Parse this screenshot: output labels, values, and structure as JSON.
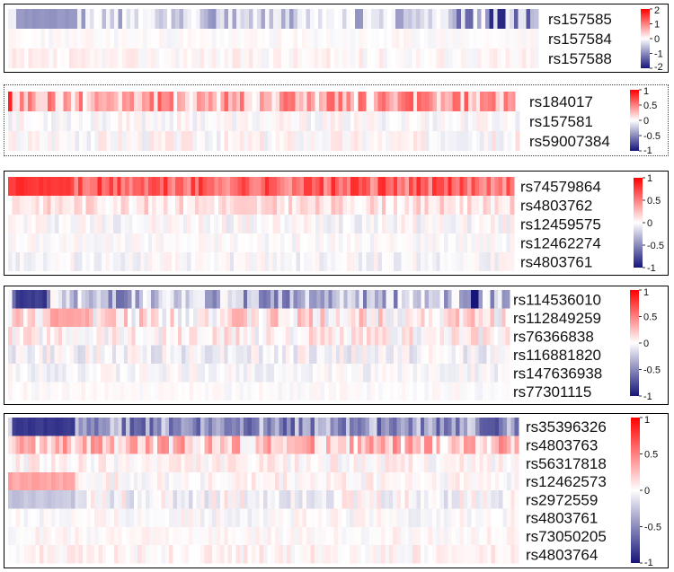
{
  "chart_data": [
    {
      "type": "heatmap",
      "panel": 1,
      "rows": [
        "rs157585",
        "rs157584",
        "rs157588"
      ],
      "columns": 130,
      "color_scale": {
        "min": -2,
        "max": 2,
        "low": "#15157a",
        "mid": "#ffffff",
        "high": "#ff0000"
      },
      "legend_ticks": [
        "2",
        "1",
        "0",
        "-1",
        "-2"
      ],
      "legend_values": [
        2,
        1,
        0,
        -1,
        -2
      ],
      "row_profiles": [
        {
          "base": -0.45,
          "amp": 0.5,
          "seed": 11,
          "blocks": [
            {
              "from": 0,
              "to": 18,
              "value": -0.9
            },
            {
              "from": 110,
              "to": 113,
              "value": -1.3
            },
            {
              "from": 118,
              "to": 121,
              "value": -1.8
            },
            {
              "from": 124,
              "to": 127,
              "value": -1.4
            }
          ],
          "gaps": 0.25
        },
        {
          "base": 0.0,
          "amp": 0.12,
          "seed": 23,
          "blocks": [],
          "gaps": 0
        },
        {
          "base": 0.05,
          "amp": 0.18,
          "seed": 37,
          "blocks": [],
          "gaps": 0
        }
      ]
    },
    {
      "type": "heatmap",
      "panel": 2,
      "rows": [
        "rs184017",
        "rs157581",
        "rs59007384"
      ],
      "columns": 130,
      "color_scale": {
        "min": -1,
        "max": 1,
        "low": "#15157a",
        "mid": "#ffffff",
        "high": "#ff0000"
      },
      "legend_ticks": [
        "1",
        "0.5",
        "0",
        "-0.5",
        "-1"
      ],
      "legend_values": [
        1,
        0.5,
        0,
        -0.5,
        -1
      ],
      "row_profiles": [
        {
          "base": 0.32,
          "amp": 0.35,
          "seed": 41,
          "blocks": [
            {
              "from": 0,
              "to": 1,
              "value": 0.9
            }
          ],
          "gaps": 0.1
        },
        {
          "base": 0.0,
          "amp": 0.1,
          "seed": 53,
          "blocks": [],
          "gaps": 0
        },
        {
          "base": 0.02,
          "amp": 0.12,
          "seed": 67,
          "blocks": [],
          "gaps": 0
        }
      ]
    },
    {
      "type": "heatmap",
      "panel": 3,
      "rows": [
        "rs74579864",
        "rs4803762",
        "rs12459575",
        "rs12462274",
        "rs4803761"
      ],
      "columns": 130,
      "color_scale": {
        "min": -1,
        "max": 1,
        "low": "#15157a",
        "mid": "#ffffff",
        "high": "#ff0000"
      },
      "legend_ticks": [
        "1",
        "0.5",
        "0",
        "-0.5",
        "-1"
      ],
      "legend_values": [
        1,
        0.5,
        0,
        -0.5,
        -1
      ],
      "row_profiles": [
        {
          "base": 0.6,
          "amp": 0.25,
          "seed": 71,
          "blocks": [
            {
              "from": 0,
              "to": 15,
              "value": 0.8
            }
          ],
          "gaps": 0
        },
        {
          "base": 0.12,
          "amp": 0.15,
          "seed": 83,
          "blocks": [],
          "gaps": 0
        },
        {
          "base": 0.0,
          "amp": 0.12,
          "seed": 97,
          "blocks": [],
          "gaps": 0
        },
        {
          "base": 0.0,
          "amp": 0.08,
          "seed": 101,
          "blocks": [],
          "gaps": 0
        },
        {
          "base": -0.02,
          "amp": 0.1,
          "seed": 113,
          "blocks": [],
          "gaps": 0
        }
      ]
    },
    {
      "type": "heatmap",
      "panel": 4,
      "rows": [
        "rs114536010",
        "rs112849259",
        "rs76366838",
        "rs116881820",
        "rs147636938",
        "rs77301115"
      ],
      "columns": 130,
      "color_scale": {
        "min": -1,
        "max": 1,
        "low": "#15157a",
        "mid": "#ffffff",
        "high": "#ff0000"
      },
      "legend_ticks": [
        "1",
        "0.5",
        "0",
        "-0.5",
        "-1"
      ],
      "legend_values": [
        1,
        0.5,
        0,
        -0.5,
        -1
      ],
      "row_profiles": [
        {
          "base": -0.3,
          "amp": 0.35,
          "seed": 127,
          "blocks": [
            {
              "from": 2,
              "to": 9,
              "value": -0.85
            },
            {
              "from": 120,
              "to": 121,
              "value": -1.0
            }
          ],
          "gaps": 0.15
        },
        {
          "base": 0.1,
          "amp": 0.25,
          "seed": 131,
          "blocks": [
            {
              "from": 11,
              "to": 20,
              "value": 0.35
            }
          ],
          "gaps": 0
        },
        {
          "base": 0.05,
          "amp": 0.18,
          "seed": 139,
          "blocks": [],
          "gaps": 0
        },
        {
          "base": -0.04,
          "amp": 0.15,
          "seed": 149,
          "blocks": [],
          "gaps": 0
        },
        {
          "base": -0.02,
          "amp": 0.1,
          "seed": 151,
          "blocks": [],
          "gaps": 0
        },
        {
          "base": 0.0,
          "amp": 0.06,
          "seed": 157,
          "blocks": [],
          "gaps": 0
        }
      ]
    },
    {
      "type": "heatmap",
      "panel": 5,
      "rows": [
        "rs35396326",
        "rs4803763",
        "rs56317818",
        "rs12462573",
        "rs2972559",
        "rs4803761",
        "rs73050205",
        "rs4803764"
      ],
      "columns": 130,
      "color_scale": {
        "min": -1,
        "max": 1,
        "low": "#15157a",
        "mid": "#ffffff",
        "high": "#ff0000"
      },
      "legend_ticks": [
        "1",
        "0.5",
        "0",
        "-0.5",
        "-1"
      ],
      "legend_values": [
        1,
        0.5,
        0,
        -0.5,
        -1
      ],
      "row_profiles": [
        {
          "base": -0.45,
          "amp": 0.3,
          "seed": 163,
          "blocks": [
            {
              "from": 1,
              "to": 16,
              "value": -0.85
            },
            {
              "from": 121,
              "to": 124,
              "value": -0.75
            }
          ],
          "gaps": 0
        },
        {
          "base": 0.22,
          "amp": 0.3,
          "seed": 167,
          "blocks": [],
          "gaps": 0
        },
        {
          "base": 0.03,
          "amp": 0.12,
          "seed": 173,
          "blocks": [],
          "gaps": 0
        },
        {
          "base": 0.02,
          "amp": 0.12,
          "seed": 179,
          "blocks": [
            {
              "from": 0,
              "to": 16,
              "value": 0.35
            }
          ],
          "gaps": 0
        },
        {
          "base": -0.03,
          "amp": 0.18,
          "seed": 181,
          "blocks": [
            {
              "from": 0,
              "to": 16,
              "value": -0.25
            }
          ],
          "gaps": 0
        },
        {
          "base": 0.0,
          "amp": 0.1,
          "seed": 191,
          "blocks": [],
          "gaps": 0
        },
        {
          "base": 0.02,
          "amp": 0.08,
          "seed": 193,
          "blocks": [],
          "gaps": 0
        },
        {
          "base": 0.04,
          "amp": 0.1,
          "seed": 197,
          "blocks": [],
          "gaps": 0
        }
      ]
    }
  ]
}
